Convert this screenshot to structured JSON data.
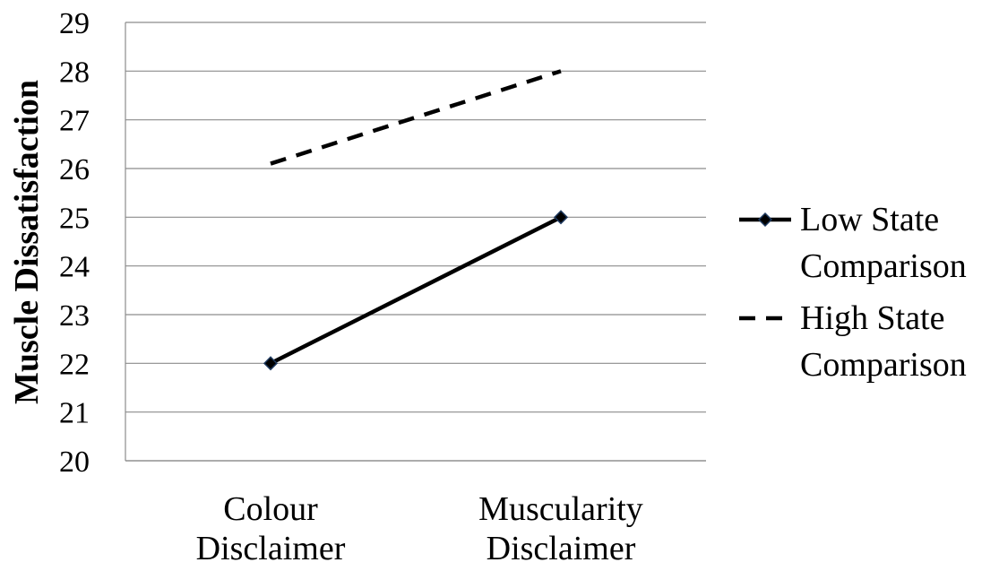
{
  "chart_data": {
    "type": "line",
    "title": "",
    "xlabel": "",
    "ylabel": "Muscle Dissatisfaction",
    "ylim": [
      20,
      29
    ],
    "yticks": [
      20,
      21,
      22,
      23,
      24,
      25,
      26,
      27,
      28,
      29
    ],
    "grid": true,
    "legend_position": "right",
    "categories": [
      [
        "Colour",
        "Disclaimer"
      ],
      [
        "Muscularity",
        "Disclaimer"
      ]
    ],
    "series": [
      {
        "name": [
          "Low State",
          "Comparison"
        ],
        "values": [
          22,
          25
        ],
        "style": "solid",
        "marker": "diamond",
        "color": "#000000",
        "marker_color": "#1f3a5f"
      },
      {
        "name": [
          "High State",
          "Comparison"
        ],
        "values": [
          26.1,
          28
        ],
        "style": "dashed",
        "marker": "none",
        "color": "#000000"
      }
    ]
  }
}
